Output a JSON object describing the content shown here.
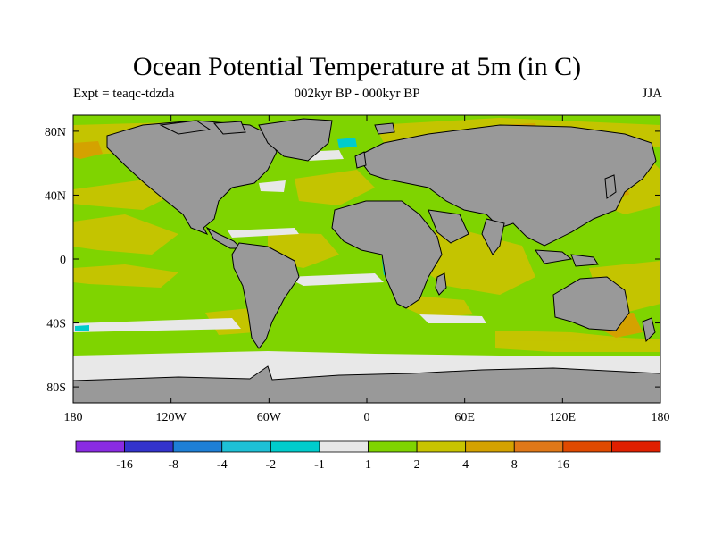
{
  "title": "Ocean Potential Temperature at 5m (in C)",
  "subtitle_left": "Expt = teaqc-tdzda",
  "subtitle_center": "002kyr BP - 000kyr BP",
  "subtitle_right": "JJA",
  "axes": {
    "x_ticks": [
      "180",
      "120W",
      "60W",
      "0",
      "60E",
      "120E",
      "180"
    ],
    "y_ticks": [
      "80N",
      "40N",
      "0",
      "40S",
      "80S"
    ],
    "x_values": [
      -180,
      -120,
      -60,
      0,
      60,
      120,
      180
    ],
    "y_values": [
      80,
      40,
      0,
      -40,
      -80
    ],
    "lon_range": [
      -180,
      180
    ],
    "lat_range": [
      -90,
      90
    ]
  },
  "colorbar": {
    "colors": [
      "#8a2be2",
      "#3333cc",
      "#1e7fd6",
      "#1ec0d6",
      "#00cccc",
      "#e8e8e8",
      "#7fd400",
      "#c8c400",
      "#d4a200",
      "#e07818",
      "#e04a00",
      "#e02000"
    ],
    "labels": [
      "-16",
      "-8",
      "-4",
      "-2",
      "-1",
      "1",
      "2",
      "4",
      "8",
      "16"
    ]
  },
  "colors": {
    "land": "#999999",
    "background_anomaly": "#7fd400",
    "coastline": "#000000"
  }
}
